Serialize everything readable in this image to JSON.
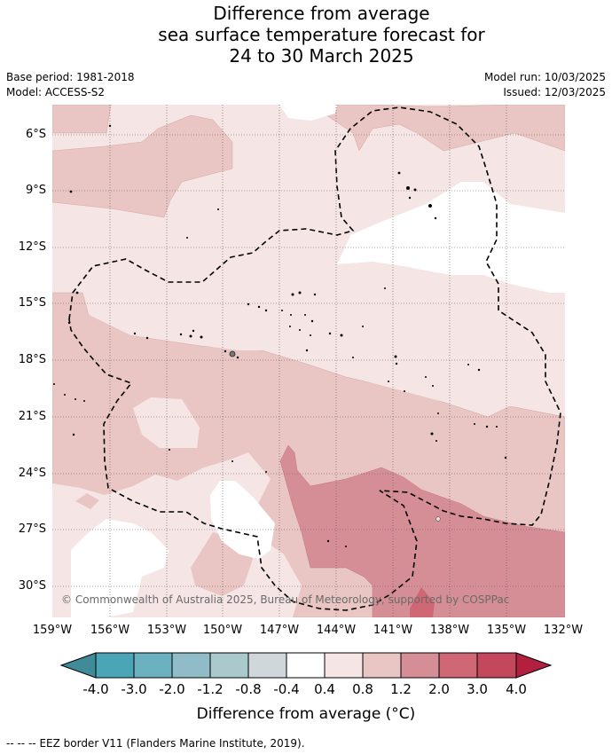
{
  "title": {
    "line1": "Difference from average",
    "line2": "sea surface temperature forecast for",
    "line3": "24 to 30 March 2025"
  },
  "meta": {
    "base_period": "Base period: 1981-2018",
    "model": "Model: ACCESS-S2",
    "model_run": "Model run: 10/03/2025",
    "issued": "Issued: 12/03/2025"
  },
  "map": {
    "y_labels": [
      "6°S",
      "9°S",
      "12°S",
      "15°S",
      "18°S",
      "21°S",
      "24°S",
      "27°S",
      "30°S"
    ],
    "x_labels": [
      "159°W",
      "156°W",
      "153°W",
      "150°W",
      "147°W",
      "144°W",
      "141°W",
      "138°W",
      "135°W",
      "132°W"
    ],
    "copyright": "© Commonwealth of Australia 2025, Bureau of Meteorology, supported by COSPPac",
    "layers": {
      "near_average": "#ffffff",
      "anomaly_0_4_to_0_8": "#f5e6e5",
      "anomaly_0_8_to_1_2": "#e9c6c3",
      "anomaly_1_2_to_2_0": "#d68e96",
      "anomaly_2_0_to_3_0": "#cf6775"
    }
  },
  "colorbar": {
    "labels": [
      "-4.0",
      "-3.0",
      "-2.0",
      "-1.2",
      "-0.8",
      "-0.4",
      "0.4",
      "0.8",
      "1.2",
      "2.0",
      "3.0",
      "4.0"
    ],
    "colors": [
      "#3f8b98",
      "#4aa6b6",
      "#6cb1c0",
      "#8fbcc6",
      "#a9c9cd",
      "#d0d7da",
      "#ffffff",
      "#f5e6e5",
      "#e9c6c3",
      "#d68e96",
      "#cf6775",
      "#c3485c",
      "#b21f3f"
    ],
    "title": "Difference from average (°C)"
  },
  "legend": {
    "line_sample": "-- -- --",
    "label": "EEZ border V11 (Flanders Marine Institute, 2019)."
  }
}
